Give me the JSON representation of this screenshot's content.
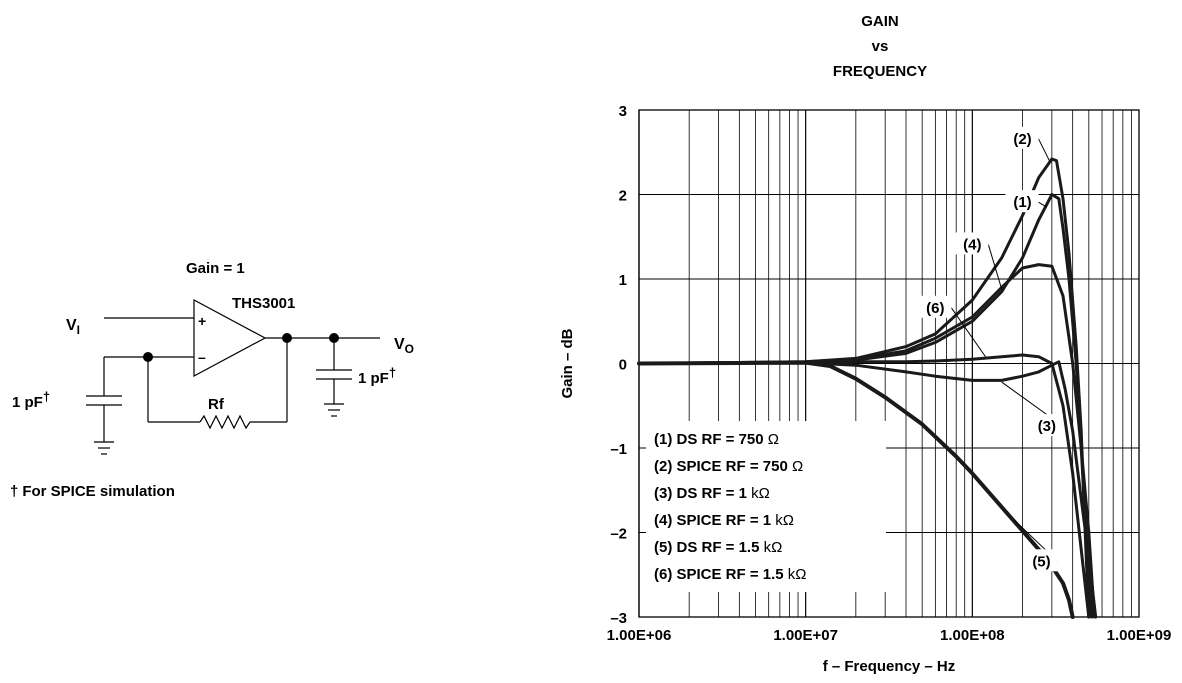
{
  "schematic": {
    "gain_label": "Gain = 1",
    "opamp_label": "THS3001",
    "plus_sign": "+",
    "minus_sign": "–",
    "vi_main": "V",
    "vi_sub": "I",
    "vo_main": "V",
    "vo_sub": "O",
    "rf_label": "Rf",
    "cap_in_label": "1 pF",
    "cap_out_label": "1 pF",
    "dagger": "†",
    "footnote": "For SPICE simulation"
  },
  "chart_data": {
    "type": "line",
    "title": [
      "GAIN",
      "vs",
      "FREQUENCY"
    ],
    "xlabel": "f – Frequency – Hz",
    "ylabel": "Gain – dB",
    "x_scale": "log",
    "xlim": [
      1000000,
      1000000000
    ],
    "ylim": [
      -3,
      3
    ],
    "x_ticks": [
      1000000,
      10000000,
      100000000,
      1000000000
    ],
    "x_tick_labels": [
      "1.00E+06",
      "1.00E+07",
      "1.00E+08",
      "1.00E+09"
    ],
    "y_ticks": [
      -3,
      -2,
      -1,
      0,
      1,
      2,
      3
    ],
    "y_tick_labels": [
      "–3",
      "–2",
      "–1",
      "0",
      "1",
      "2",
      "3"
    ],
    "grid": true,
    "legend": {
      "placement": "bottom-left",
      "entries": [
        {
          "text": "(1) DS RF = 750 ",
          "unit": "Ω"
        },
        {
          "text": "(2) SPICE RF = 750 ",
          "unit": "Ω"
        },
        {
          "text": "(3) DS RF = 1 ",
          "unit": "kΩ"
        },
        {
          "text": "(4) SPICE RF = 1 ",
          "unit": "kΩ"
        },
        {
          "text": "(5) DS RF = 1.5 ",
          "unit": "kΩ"
        },
        {
          "text": "(6) SPICE RF = 1.5 ",
          "unit": "kΩ"
        }
      ]
    },
    "series": [
      {
        "id": "(1)",
        "x": [
          1000000,
          10000000,
          20000000,
          40000000,
          60000000,
          100000000,
          150000000,
          200000000,
          250000000,
          300000000,
          330000000,
          350000000,
          380000000,
          420000000,
          450000000,
          480000000,
          520000000
        ],
        "y": [
          0,
          0.01,
          0.04,
          0.12,
          0.25,
          0.5,
          0.85,
          1.25,
          1.7,
          2.0,
          1.95,
          1.6,
          1.0,
          0.0,
          -1.0,
          -2.0,
          -3.0
        ]
      },
      {
        "id": "(2)",
        "x": [
          1000000,
          10000000,
          20000000,
          40000000,
          60000000,
          100000000,
          150000000,
          200000000,
          250000000,
          300000000,
          320000000,
          350000000,
          380000000,
          420000000,
          450000000,
          480000000,
          500000000
        ],
        "y": [
          0,
          0.02,
          0.06,
          0.2,
          0.35,
          0.75,
          1.25,
          1.75,
          2.2,
          2.42,
          2.4,
          1.95,
          1.3,
          0.2,
          -0.8,
          -2.2,
          -3.0
        ]
      },
      {
        "id": "(3)",
        "x": [
          1000000,
          10000000,
          20000000,
          40000000,
          60000000,
          100000000,
          150000000,
          200000000,
          250000000,
          300000000,
          330000000,
          360000000,
          400000000,
          450000000,
          500000000,
          550000000
        ],
        "y": [
          0,
          0.01,
          -0.02,
          -0.1,
          -0.15,
          -0.2,
          -0.2,
          -0.15,
          -0.1,
          -0.02,
          0.02,
          -0.3,
          -0.8,
          -1.6,
          -2.3,
          -3.0
        ]
      },
      {
        "id": "(4)",
        "x": [
          1000000,
          10000000,
          20000000,
          40000000,
          60000000,
          100000000,
          150000000,
          200000000,
          250000000,
          300000000,
          350000000,
          400000000,
          450000000,
          500000000,
          540000000
        ],
        "y": [
          0,
          0.02,
          0.05,
          0.15,
          0.3,
          0.55,
          0.9,
          1.13,
          1.17,
          1.15,
          0.8,
          0.0,
          -1.0,
          -2.0,
          -3.0
        ]
      },
      {
        "id": "(5)",
        "x": [
          1000000,
          10000000,
          14000000,
          20000000,
          30000000,
          50000000,
          80000000,
          100000000,
          150000000,
          200000000,
          250000000,
          300000000,
          350000000,
          380000000,
          400000000
        ],
        "y": [
          0,
          0.01,
          -0.03,
          -0.18,
          -0.4,
          -0.72,
          -1.1,
          -1.3,
          -1.7,
          -1.98,
          -2.2,
          -2.4,
          -2.6,
          -2.8,
          -3.0
        ]
      },
      {
        "id": "(6)",
        "x": [
          1000000,
          10000000,
          20000000,
          40000000,
          60000000,
          100000000,
          150000000,
          200000000,
          250000000,
          300000000,
          350000000,
          400000000,
          450000000,
          500000000
        ],
        "y": [
          0,
          0.01,
          0.02,
          0.02,
          0.03,
          0.05,
          0.08,
          0.1,
          0.08,
          0.0,
          -0.5,
          -1.3,
          -2.2,
          -3.0
        ]
      }
    ],
    "annotations": [
      {
        "text": "(1)",
        "x": 200000000,
        "y": 1.85,
        "line_to_x": 280000000,
        "line_to_y": 1.85
      },
      {
        "text": "(2)",
        "x": 200000000,
        "y": 2.6,
        "line_to_x": 290000000,
        "line_to_y": 2.4
      },
      {
        "text": "(3)",
        "x": 280000000,
        "y": -0.8,
        "line_to_x": 150000000,
        "line_to_y": -0.22
      },
      {
        "text": "(4)",
        "x": 100000000,
        "y": 1.35,
        "line_to_x": 150000000,
        "line_to_y": 0.88
      },
      {
        "text": "(5)",
        "x": 260000000,
        "y": -2.4,
        "line_to_x": 180000000,
        "line_to_y": -1.86
      },
      {
        "text": "(6)",
        "x": 60000000,
        "y": 0.6,
        "line_to_x": 120000000,
        "line_to_y": 0.08
      }
    ]
  }
}
